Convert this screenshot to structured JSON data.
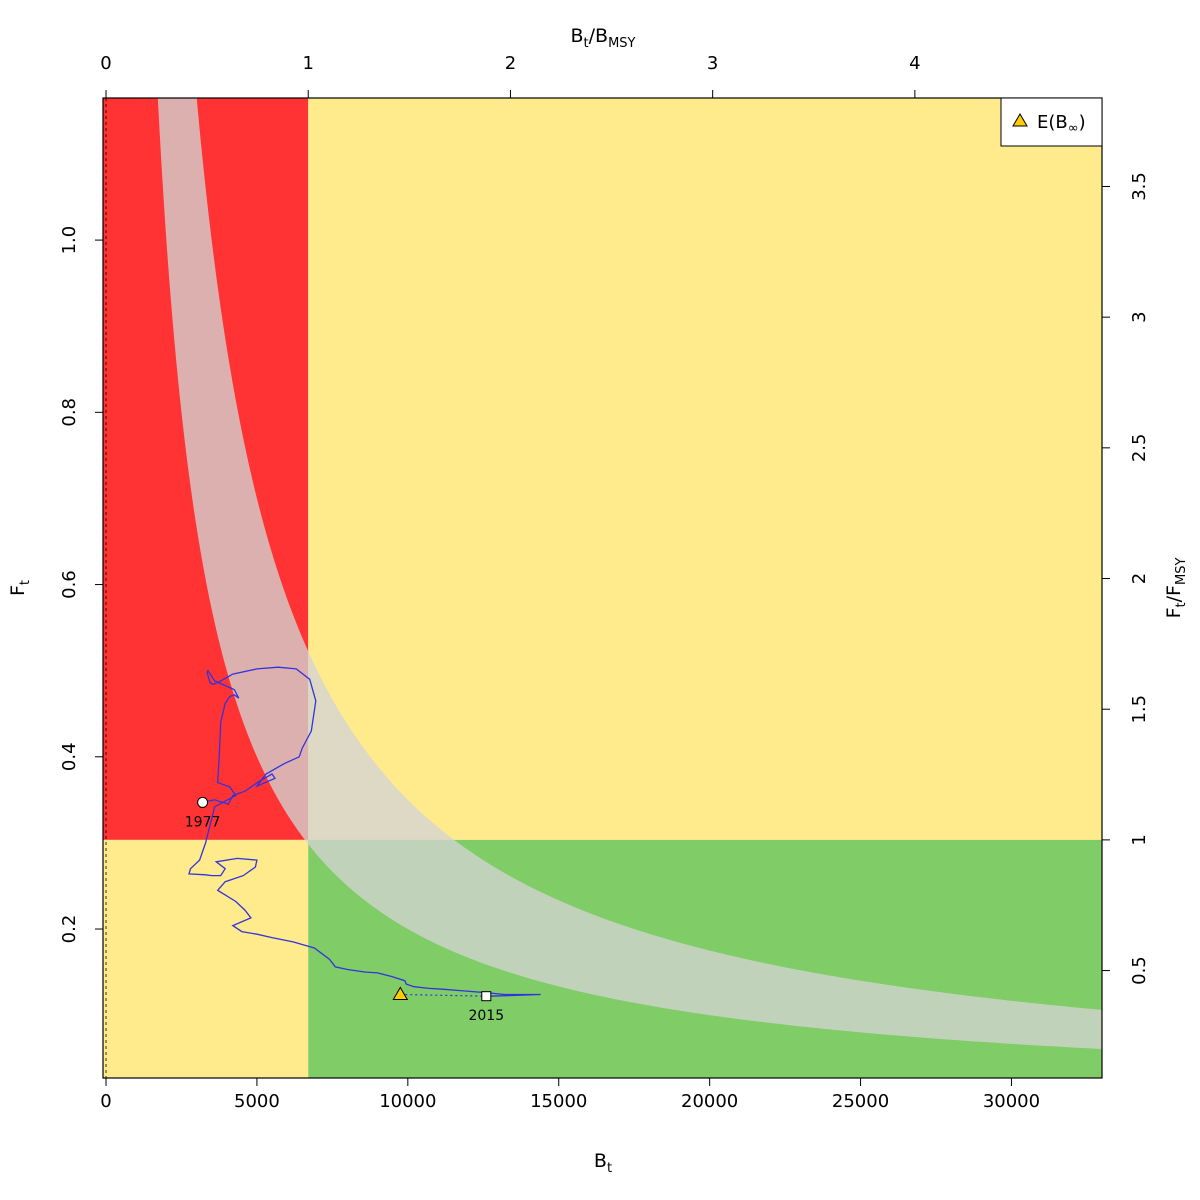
{
  "chart_data": {
    "type": "line",
    "title": "",
    "xlabel": {
      "main": "B",
      "sub": "t"
    },
    "ylabel": {
      "main": "F",
      "sub": "t"
    },
    "x2label": {
      "num_main": "B",
      "num_sub": "t",
      "den_main": "B",
      "den_sub": "MSY"
    },
    "y2label": {
      "num_main": "F",
      "num_sub": "t",
      "den_main": "F",
      "den_sub": "MSY"
    },
    "xlim": [
      -100,
      33000
    ],
    "ylim": [
      0.027,
      1.165
    ],
    "x_ticks": [
      0,
      5000,
      10000,
      15000,
      20000,
      25000,
      30000
    ],
    "y_ticks": [
      0.2,
      0.4,
      0.6,
      0.8,
      1.0
    ],
    "y_tick_labels": [
      "0.2",
      "0.4",
      "0.6",
      "0.8",
      "1.0"
    ],
    "bmsy": 6700,
    "fmsy": 0.3035,
    "x2_ticks": [
      0,
      1,
      2,
      3,
      4
    ],
    "y2_ticks": [
      0.5,
      1,
      1.5,
      2,
      2.5,
      3,
      3.5
    ],
    "y2_tick_labels": [
      "0.5",
      "1",
      "1.5",
      "2",
      "2.5",
      "3",
      "3.5"
    ],
    "grid": false,
    "zones": {
      "red": "#ff3333",
      "yellow": "#ffea8c",
      "green": "#80cc66",
      "band": "#d3d3d3"
    },
    "msy_band": {
      "upper_constant": 3500,
      "lower_constant": 2000
    },
    "trajectory": {
      "color": "#3333dd",
      "x": [
        3200,
        3600,
        4050,
        4200,
        4600,
        5100,
        5500,
        5600,
        5000,
        5300,
        5900,
        6400,
        6500,
        6800,
        6950,
        6750,
        6300,
        5700,
        5000,
        4200,
        3800,
        3550,
        3450,
        3350,
        3380,
        3600,
        3800,
        4250,
        4400,
        4250,
        4100,
        3950,
        3800,
        3750,
        3700,
        4100,
        4300,
        3600,
        3300,
        3100,
        2800,
        2750,
        3300,
        3500,
        3800,
        3950,
        3650,
        4350,
        5000,
        4950,
        4550,
        3950,
        3700,
        4300,
        4600,
        4800,
        4200,
        4500,
        5000,
        5500,
        6200,
        6900,
        7400,
        7600,
        8000,
        8600,
        9000,
        9450,
        9900,
        9950,
        10200,
        10700,
        11200,
        11900,
        12600,
        13200,
        14400,
        13600,
        12700,
        12600
      ],
      "y": [
        0.347,
        0.35,
        0.345,
        0.355,
        0.36,
        0.372,
        0.38,
        0.375,
        0.366,
        0.38,
        0.392,
        0.4,
        0.41,
        0.43,
        0.465,
        0.49,
        0.502,
        0.504,
        0.502,
        0.496,
        0.488,
        0.484,
        0.486,
        0.498,
        0.5,
        0.488,
        0.485,
        0.478,
        0.468,
        0.472,
        0.47,
        0.462,
        0.44,
        0.4,
        0.37,
        0.365,
        0.355,
        0.342,
        0.3,
        0.28,
        0.27,
        0.264,
        0.263,
        0.262,
        0.262,
        0.27,
        0.278,
        0.282,
        0.28,
        0.272,
        0.262,
        0.255,
        0.245,
        0.232,
        0.222,
        0.213,
        0.204,
        0.197,
        0.194,
        0.19,
        0.185,
        0.178,
        0.165,
        0.156,
        0.153,
        0.15,
        0.149,
        0.145,
        0.14,
        0.136,
        0.133,
        0.131,
        0.13,
        0.128,
        0.126,
        0.124,
        0.124,
        0.123,
        0.122,
        0.122
      ]
    },
    "points": {
      "start": {
        "label": "1977",
        "x": 3200,
        "y": 0.347
      },
      "end": {
        "label": "2015",
        "x": 12600,
        "y": 0.122
      },
      "equilibrium": {
        "x": 9750,
        "y": 0.124,
        "color": "#ffcc00"
      }
    },
    "legend": {
      "position": "top-right",
      "entries": [
        {
          "label_main": "E(B",
          "label_sub": "∞",
          "label_end": ")",
          "marker": "triangle",
          "color": "#ffcc00"
        }
      ]
    }
  }
}
